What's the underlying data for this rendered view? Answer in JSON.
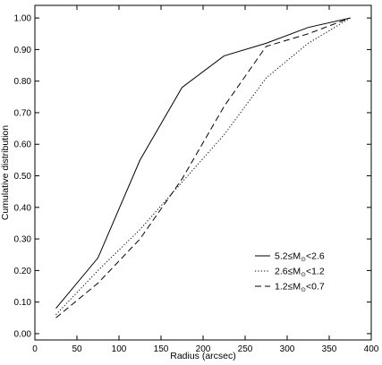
{
  "chart_data": {
    "type": "line",
    "title": "",
    "xlabel": "Radius (arcsec)",
    "ylabel": "Cumulative distribution",
    "xlim": [
      0,
      400
    ],
    "ylim": [
      -0.02,
      1.04
    ],
    "xticks": [
      0,
      50,
      100,
      150,
      200,
      250,
      300,
      350,
      400
    ],
    "xtick_labels": [
      "0",
      "50",
      "100",
      "150",
      "200",
      "250",
      "300",
      "350",
      "400"
    ],
    "yticks": [
      0.0,
      0.1,
      0.2,
      0.3,
      0.4,
      0.5,
      0.6,
      0.7,
      0.8,
      0.9,
      1.0
    ],
    "ytick_labels": [
      "0.00",
      "0.10",
      "0.20",
      "0.30",
      "0.40",
      "0.50",
      "0.60",
      "0.70",
      "0.80",
      "0.90",
      "1.00"
    ],
    "grid": false,
    "legend_position": "bottom-right",
    "series": [
      {
        "name": "5.2≤M⊙<2.6",
        "legend": {
          "prefix": "5.2≤M",
          "sub": "⊙",
          "suffix": "<2.6"
        },
        "style": "solid",
        "color": "#000000",
        "x": [
          25,
          75,
          125,
          175,
          225,
          275,
          325,
          375
        ],
        "values": [
          0.08,
          0.24,
          0.55,
          0.78,
          0.88,
          0.92,
          0.97,
          1.0
        ]
      },
      {
        "name": "2.6≤M⊙<1.2",
        "legend": {
          "prefix": "2.6≤M",
          "sub": "⊙",
          "suffix": "<1.2"
        },
        "style": "dotted",
        "color": "#000000",
        "x": [
          25,
          75,
          125,
          175,
          225,
          275,
          325,
          375
        ],
        "values": [
          0.06,
          0.2,
          0.33,
          0.48,
          0.63,
          0.81,
          0.92,
          1.0
        ]
      },
      {
        "name": "1.2≤M⊙<0.7",
        "legend": {
          "prefix": "1.2≤M",
          "sub": "⊙",
          "suffix": "<0.7"
        },
        "style": "dashed",
        "color": "#000000",
        "x": [
          25,
          75,
          125,
          175,
          225,
          275,
          325,
          375
        ],
        "values": [
          0.05,
          0.16,
          0.3,
          0.49,
          0.72,
          0.91,
          0.95,
          1.0
        ]
      }
    ]
  }
}
